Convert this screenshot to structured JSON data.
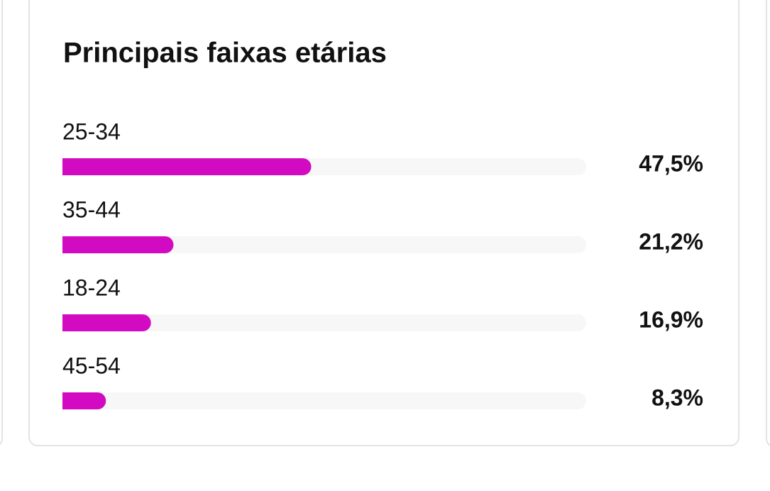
{
  "chart_data": {
    "type": "bar",
    "orientation": "horizontal",
    "title": "Principais faixas etárias",
    "categories": [
      "25-34",
      "35-44",
      "18-24",
      "45-54"
    ],
    "values": [
      47.5,
      21.2,
      16.9,
      8.3
    ],
    "value_labels": [
      "47,5%",
      "21,2%",
      "16,9%",
      "8,3%"
    ],
    "color": "#d20bc2",
    "xlim": [
      0,
      100
    ]
  }
}
